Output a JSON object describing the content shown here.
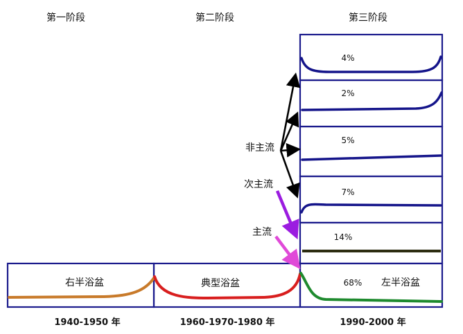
{
  "stages": {
    "first": "第一阶段",
    "second": "第二阶段",
    "third": "第三阶段"
  },
  "bottom_curves": {
    "right_half_tub": "右半浴盆",
    "typical_tub": "典型浴盆",
    "left_half_tub": "左半浴盆",
    "left_half_pct": "68%"
  },
  "stack_percentages": [
    "4%",
    "2%",
    "5%",
    "7%",
    "14%"
  ],
  "arrow_labels": {
    "non_mainstream": "非主流",
    "secondary": "次主流",
    "mainstream": "主流"
  },
  "years": {
    "first": "1940-1950 年",
    "second": "1960-1970-1980 年",
    "third": "1990-2000 年"
  },
  "colors": {
    "box_border": "#1a1a8c",
    "curve_orange": "#c87a2a",
    "curve_red": "#d81e1e",
    "curve_green": "#1e8a2e",
    "curve_navy": "#14148a",
    "curve_dark_olive": "#2c2c10",
    "arrow_black": "#000000",
    "arrow_purple": "#9b1ce0",
    "arrow_pink": "#e04ad8"
  }
}
